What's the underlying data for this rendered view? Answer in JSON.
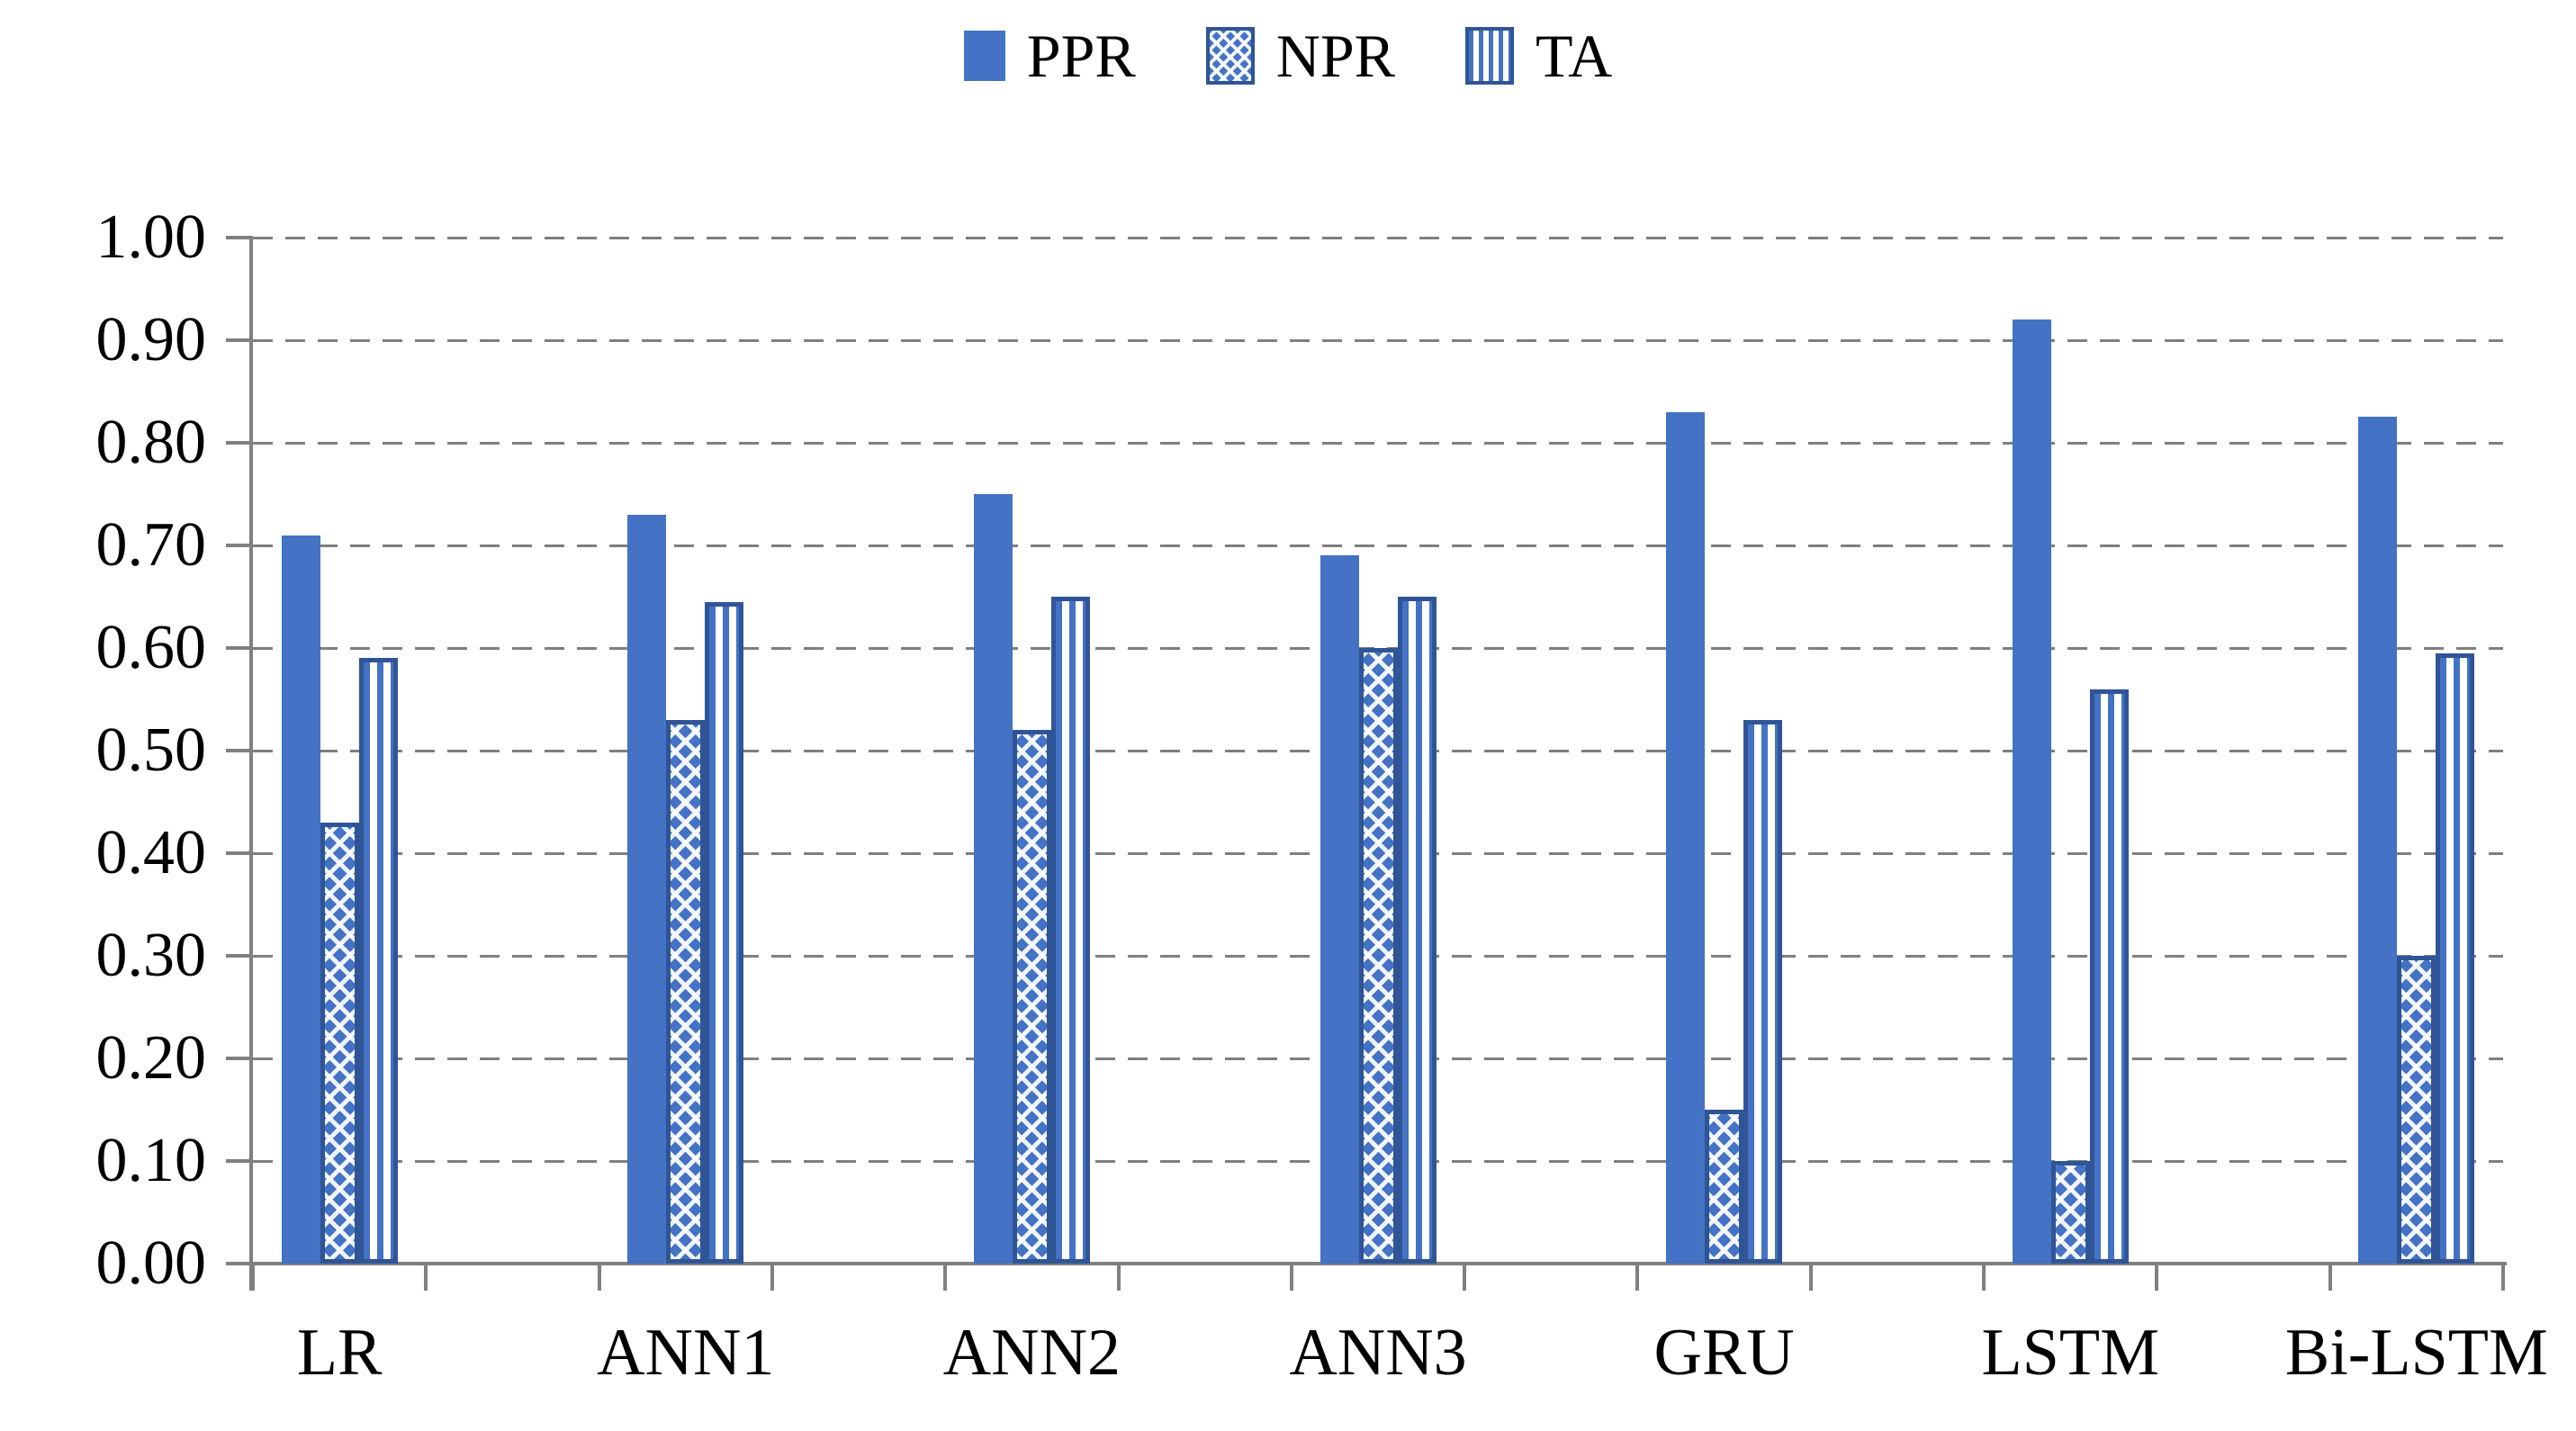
{
  "chart_data": {
    "type": "bar",
    "title": "",
    "xlabel": "",
    "ylabel": "",
    "categories": [
      "LR",
      "ANN1",
      "ANN2",
      "ANN3",
      "GRU",
      "LSTM",
      "Bi-LSTM"
    ],
    "series": [
      {
        "name": "PPR",
        "fill": "solid",
        "values": [
          0.71,
          0.73,
          0.75,
          0.69,
          0.83,
          0.92,
          0.825
        ]
      },
      {
        "name": "NPR",
        "fill": "checker",
        "values": [
          0.43,
          0.53,
          0.52,
          0.6,
          0.15,
          0.1,
          0.3
        ]
      },
      {
        "name": "TA",
        "fill": "vstripe",
        "values": [
          0.59,
          0.645,
          0.65,
          0.65,
          0.53,
          0.56,
          0.595
        ]
      }
    ],
    "ylim": [
      0.0,
      1.0
    ],
    "ytick_step": 0.1,
    "ytick_labels": [
      "0.00",
      "0.10",
      "0.20",
      "0.30",
      "0.40",
      "0.50",
      "0.60",
      "0.70",
      "0.80",
      "0.90",
      "1.00"
    ],
    "grid": "dashed-horizontal",
    "legend_position": "top-center",
    "colors": {
      "bar_fill": "#4472C4",
      "bar_border": "#2F5597",
      "gridline": "#7F7F7F",
      "axis": "#808080",
      "text": "#000000",
      "background": "#FFFFFF"
    }
  }
}
